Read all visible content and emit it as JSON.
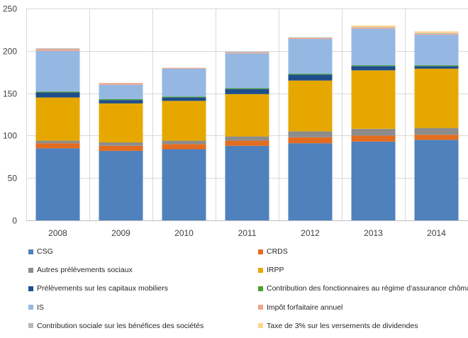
{
  "chart_data": {
    "type": "stacked-bar",
    "title": "",
    "xlabel": "",
    "ylabel": "",
    "ylim": [
      0,
      250
    ],
    "yticks": [
      0,
      50,
      100,
      150,
      200,
      250
    ],
    "categories": [
      "2008",
      "2009",
      "2010",
      "2011",
      "2012",
      "2013",
      "2014"
    ],
    "series": [
      {
        "name": "CSG",
        "color": "#4f81bd",
        "values": [
          85,
          82,
          84,
          88,
          91,
          93,
          95
        ]
      },
      {
        "name": "CRDS",
        "color": "#e46c1f",
        "values": [
          6,
          6,
          6,
          6,
          7,
          7,
          6
        ]
      },
      {
        "name": "Autres prélèvements sociaux",
        "color": "#8c8c8c",
        "values": [
          3,
          4,
          4,
          5,
          7,
          8,
          8
        ]
      },
      {
        "name": "IRPP",
        "color": "#e6a800",
        "values": [
          51,
          46,
          47,
          50,
          60,
          69,
          70
        ]
      },
      {
        "name": "Prélèvements sur les capitaux mobiliers",
        "color": "#1f4e8c",
        "values": [
          6,
          4,
          4,
          6,
          7,
          5,
          3
        ]
      },
      {
        "name": "Contribution des fonctionnaires au régime d'assurance chômage",
        "color": "#4aa02c",
        "values": [
          1,
          1,
          1,
          1,
          1,
          1,
          1
        ]
      },
      {
        "name": "IS",
        "color": "#95b8e3",
        "values": [
          48,
          17,
          33,
          41,
          41,
          43,
          36
        ]
      },
      {
        "name": "Impôt forfaitaire annuel",
        "color": "#f0a48a",
        "values": [
          2,
          2,
          1,
          1,
          1,
          1,
          1
        ]
      },
      {
        "name": "Contribution sociale sur les bénéfices des sociétés",
        "color": "#b8b8b8",
        "values": [
          1,
          0,
          0,
          1,
          1,
          1,
          1
        ]
      },
      {
        "name": "Taxe de 3% sur les versements de dividendes",
        "color": "#ffd58c",
        "values": [
          0,
          0,
          0,
          0,
          0,
          2,
          2
        ]
      }
    ],
    "legend_position": "bottom",
    "grid": true
  }
}
